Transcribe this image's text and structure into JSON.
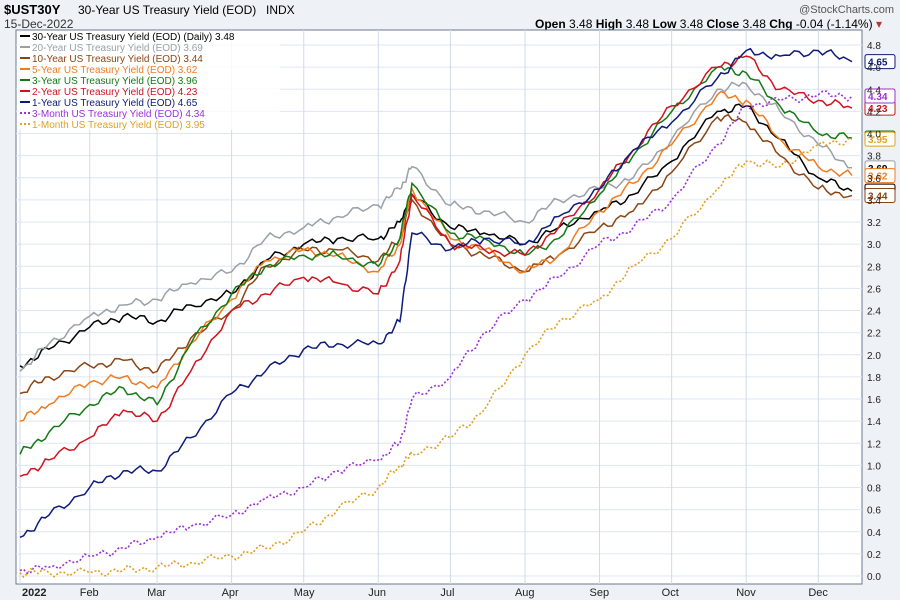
{
  "header": {
    "symbol": "$UST30Y",
    "title": "30-Year US Treasury Yield (EOD)",
    "exchange": "INDX",
    "date": "15-Dec-2022",
    "credit": "@StockCharts.com",
    "open_label": "Open",
    "open": "3.48",
    "high_label": "High",
    "high": "3.48",
    "low_label": "Low",
    "low": "3.48",
    "close_label": "Close",
    "close": "3.48",
    "chg_label": "Chg",
    "chg": "-0.04 (-1.14%)"
  },
  "chart_data": {
    "type": "line",
    "title": "30-Year US Treasury Yield (EOD)",
    "xlabel": "",
    "ylabel": "",
    "x_ticks": [
      "2022",
      "Feb",
      "Mar",
      "Apr",
      "May",
      "Jun",
      "Jul",
      "Aug",
      "Sep",
      "Oct",
      "Nov",
      "Dec"
    ],
    "y_ticks": [
      "0.0",
      "0.2",
      "0.4",
      "0.6",
      "0.8",
      "1.0",
      "1.2",
      "1.4",
      "1.6",
      "1.8",
      "2.0",
      "2.2",
      "2.4",
      "2.6",
      "2.8",
      "3.0",
      "3.2",
      "3.4",
      "3.6",
      "3.8",
      "4.0",
      "4.2",
      "4.4",
      "4.6",
      "4.8"
    ],
    "ylim": [
      0,
      4.9
    ],
    "grid": true,
    "legend_position": "top-left",
    "x": [
      "2022-01-03",
      "2022-01-15",
      "2022-02-01",
      "2022-02-15",
      "2022-03-01",
      "2022-03-15",
      "2022-04-01",
      "2022-04-15",
      "2022-05-01",
      "2022-05-15",
      "2022-06-01",
      "2022-06-10",
      "2022-06-15",
      "2022-07-01",
      "2022-07-15",
      "2022-08-01",
      "2022-08-15",
      "2022-09-01",
      "2022-09-15",
      "2022-10-01",
      "2022-10-20",
      "2022-11-01",
      "2022-11-15",
      "2022-12-01",
      "2022-12-15"
    ],
    "series": [
      {
        "name": "30-Year US Treasury Yield (EOD) (Daily) 3.48",
        "last": "3.48",
        "color": "#000000",
        "dashed": false,
        "values": [
          1.9,
          2.05,
          2.25,
          2.35,
          2.3,
          2.45,
          2.55,
          2.85,
          3.0,
          3.05,
          3.05,
          3.2,
          3.45,
          3.15,
          3.1,
          3.0,
          3.15,
          3.3,
          3.45,
          3.75,
          4.2,
          4.25,
          3.95,
          3.6,
          3.48
        ]
      },
      {
        "name": "20-Year US Treasury Yield (EOD) 3.69",
        "last": "3.69",
        "color": "#9aa0a6",
        "dashed": false,
        "values": [
          1.85,
          2.1,
          2.35,
          2.45,
          2.5,
          2.65,
          2.75,
          3.05,
          3.15,
          3.25,
          3.35,
          3.5,
          3.7,
          3.35,
          3.3,
          3.2,
          3.4,
          3.5,
          3.6,
          3.95,
          4.4,
          4.45,
          4.2,
          3.9,
          3.69
        ]
      },
      {
        "name": "10-Year US Treasury Yield (EOD) 3.44",
        "last": "3.44",
        "color": "#8b4513",
        "dashed": false,
        "values": [
          1.65,
          1.8,
          1.9,
          1.95,
          1.85,
          2.15,
          2.4,
          2.8,
          2.95,
          2.95,
          2.85,
          3.05,
          3.4,
          3.0,
          2.9,
          2.75,
          2.9,
          3.15,
          3.3,
          3.65,
          4.15,
          4.1,
          3.8,
          3.5,
          3.44
        ]
      },
      {
        "name": "5-Year US Treasury Yield (EOD) 3.62",
        "last": "3.62",
        "color": "#f07c1e",
        "dashed": false,
        "values": [
          1.4,
          1.55,
          1.75,
          1.8,
          1.7,
          2.1,
          2.5,
          2.85,
          2.95,
          2.9,
          2.75,
          3.0,
          3.5,
          3.05,
          2.95,
          2.75,
          2.9,
          3.3,
          3.55,
          3.9,
          4.35,
          4.3,
          3.95,
          3.7,
          3.62
        ]
      },
      {
        "name": "3-Year US Treasury Yield (EOD) 3.96",
        "last": "3.96",
        "color": "#137a13",
        "dashed": false,
        "values": [
          1.1,
          1.3,
          1.55,
          1.7,
          1.55,
          2.1,
          2.55,
          2.8,
          2.9,
          2.9,
          2.8,
          3.05,
          3.55,
          3.1,
          3.05,
          2.9,
          3.05,
          3.45,
          3.8,
          4.2,
          4.6,
          4.55,
          4.25,
          4.0,
          3.96
        ]
      },
      {
        "name": "2-Year US Treasury Yield (EOD) 4.23",
        "last": "4.23",
        "color": "#d0131e",
        "dashed": false,
        "values": [
          0.9,
          1.05,
          1.25,
          1.5,
          1.4,
          1.85,
          2.4,
          2.55,
          2.7,
          2.65,
          2.55,
          2.85,
          3.45,
          3.0,
          2.95,
          2.9,
          3.15,
          3.5,
          3.85,
          4.25,
          4.6,
          4.7,
          4.4,
          4.3,
          4.23
        ]
      },
      {
        "name": "1-Year US Treasury Yield (EOD) 4.65",
        "last": "4.65",
        "color": "#0d1b7a",
        "dashed": false,
        "values": [
          0.35,
          0.55,
          0.8,
          0.95,
          0.95,
          1.25,
          1.65,
          1.85,
          2.05,
          2.1,
          2.1,
          2.3,
          3.1,
          2.95,
          3.05,
          3.0,
          3.25,
          3.5,
          3.85,
          4.1,
          4.5,
          4.75,
          4.7,
          4.75,
          4.65
        ]
      },
      {
        "name": "3-Month US Treasury Yield (EOD) 4.34",
        "last": "4.34",
        "color": "#9b30d9",
        "dashed": true,
        "values": [
          0.05,
          0.08,
          0.18,
          0.25,
          0.35,
          0.45,
          0.55,
          0.7,
          0.8,
          0.95,
          1.05,
          1.2,
          1.6,
          1.8,
          2.2,
          2.5,
          2.7,
          3.0,
          3.15,
          3.4,
          3.9,
          4.25,
          4.3,
          4.35,
          4.34
        ]
      },
      {
        "name": "1-Month US Treasury Yield (EOD) 3.95",
        "last": "3.95",
        "color": "#e0a020",
        "dashed": true,
        "values": [
          0.03,
          0.03,
          0.03,
          0.05,
          0.08,
          0.12,
          0.18,
          0.25,
          0.4,
          0.6,
          0.8,
          1.0,
          1.1,
          1.25,
          1.5,
          2.0,
          2.3,
          2.5,
          2.8,
          3.05,
          3.5,
          3.75,
          3.7,
          3.9,
          3.95
        ]
      }
    ]
  }
}
